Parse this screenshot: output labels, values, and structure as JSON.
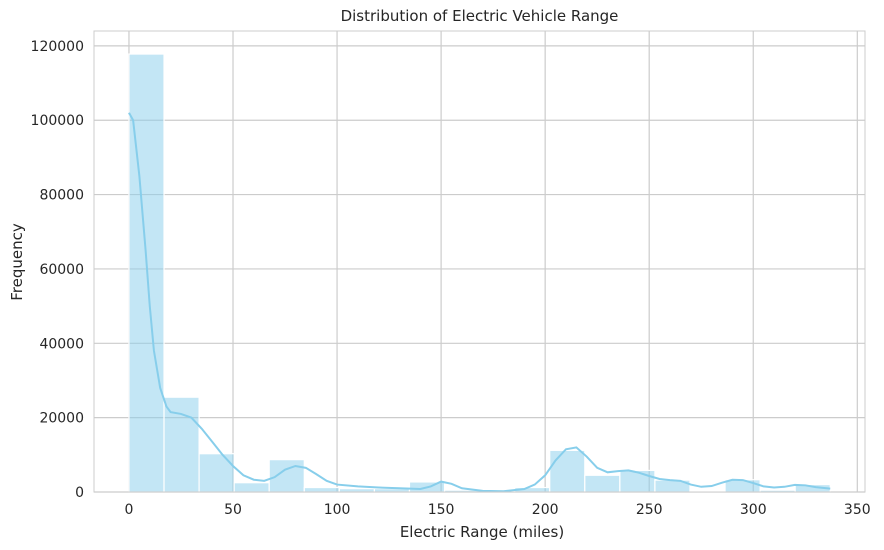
{
  "chart_data": {
    "type": "bar",
    "subtype": "histogram-with-kde",
    "title": "Distribution of Electric Vehicle Range",
    "xlabel": "Electric Range (miles)",
    "ylabel": "Frequency",
    "xlim": [
      -16.8,
      353.7
    ],
    "ylim": [
      0,
      124000
    ],
    "xticks": [
      0,
      50,
      100,
      150,
      200,
      250,
      300,
      350
    ],
    "yticks": [
      0,
      20000,
      40000,
      60000,
      80000,
      100000,
      120000
    ],
    "grid": true,
    "bar_color": "#87CEEB",
    "bins": [
      {
        "x0": 0.0,
        "x1": 16.85,
        "count": 117800
      },
      {
        "x0": 16.85,
        "x1": 33.7,
        "count": 25500
      },
      {
        "x0": 33.7,
        "x1": 50.55,
        "count": 10300
      },
      {
        "x0": 50.55,
        "x1": 67.4,
        "count": 2500
      },
      {
        "x0": 67.4,
        "x1": 84.25,
        "count": 8700
      },
      {
        "x0": 84.25,
        "x1": 101.1,
        "count": 1200
      },
      {
        "x0": 101.1,
        "x1": 117.95,
        "count": 900
      },
      {
        "x0": 117.95,
        "x1": 134.8,
        "count": 900
      },
      {
        "x0": 134.8,
        "x1": 151.65,
        "count": 2700
      },
      {
        "x0": 151.65,
        "x1": 168.5,
        "count": 500
      },
      {
        "x0": 168.5,
        "x1": 185.35,
        "count": 300
      },
      {
        "x0": 185.35,
        "x1": 202.2,
        "count": 1200
      },
      {
        "x0": 202.2,
        "x1": 219.05,
        "count": 11200
      },
      {
        "x0": 219.05,
        "x1": 235.9,
        "count": 4500
      },
      {
        "x0": 235.9,
        "x1": 252.75,
        "count": 5800
      },
      {
        "x0": 252.75,
        "x1": 269.6,
        "count": 3200
      },
      {
        "x0": 269.6,
        "x1": 286.45,
        "count": 300
      },
      {
        "x0": 286.45,
        "x1": 303.3,
        "count": 3300
      },
      {
        "x0": 303.3,
        "x1": 320.15,
        "count": 500
      },
      {
        "x0": 320.15,
        "x1": 337.0,
        "count": 2000
      }
    ],
    "kde": {
      "x": [
        0,
        2,
        5,
        8,
        10,
        12,
        15,
        18,
        20,
        25,
        30,
        35,
        40,
        45,
        50,
        55,
        60,
        65,
        70,
        75,
        80,
        85,
        90,
        95,
        100,
        110,
        120,
        130,
        140,
        145,
        150,
        155,
        160,
        170,
        180,
        190,
        195,
        200,
        205,
        210,
        215,
        220,
        225,
        230,
        235,
        240,
        245,
        250,
        255,
        260,
        265,
        270,
        275,
        280,
        285,
        290,
        295,
        300,
        305,
        310,
        315,
        320,
        325,
        330,
        337
      ],
      "y": [
        102000,
        100000,
        85000,
        65000,
        50000,
        38000,
        28000,
        23000,
        21500,
        21000,
        20000,
        17000,
        13500,
        10000,
        7000,
        4500,
        3300,
        3000,
        4000,
        6000,
        7000,
        6500,
        4800,
        3000,
        2000,
        1500,
        1200,
        1000,
        800,
        1500,
        2800,
        2200,
        1000,
        300,
        200,
        800,
        2000,
        4500,
        8500,
        11500,
        12000,
        9500,
        6500,
        5300,
        5600,
        5800,
        5200,
        4300,
        3500,
        3200,
        3000,
        2000,
        1400,
        1600,
        2500,
        3300,
        3200,
        2400,
        1500,
        1200,
        1400,
        1900,
        1800,
        1300,
        900
      ]
    }
  }
}
